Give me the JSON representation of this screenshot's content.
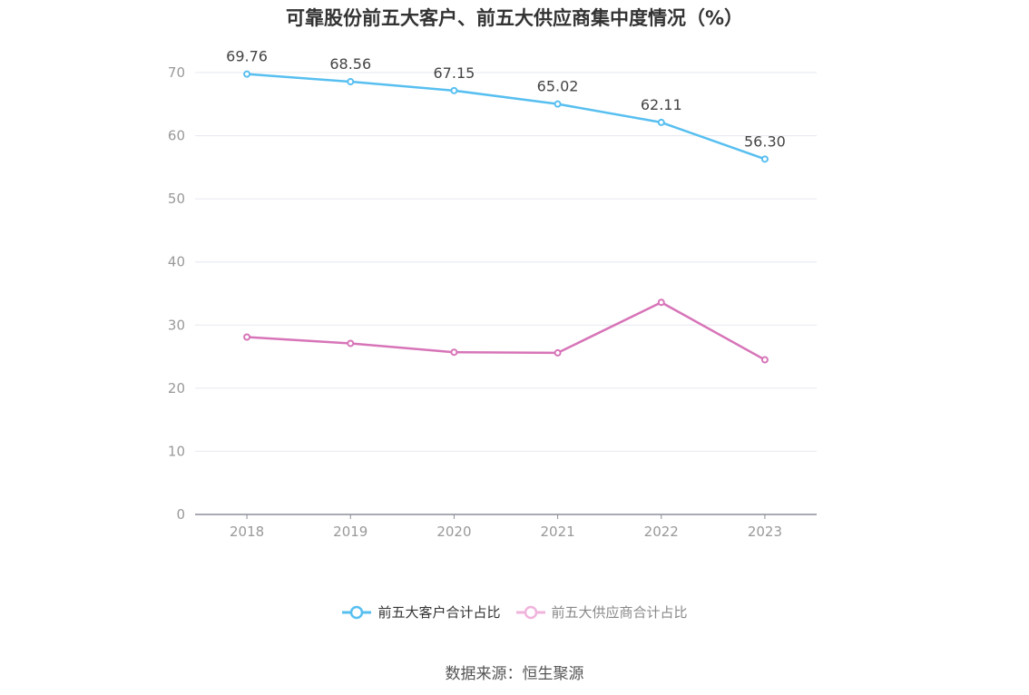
{
  "chart_data": {
    "type": "line",
    "title": "可靠股份前五大客户、前五大供应商集中度情况（%）",
    "categories": [
      "2018",
      "2019",
      "2020",
      "2021",
      "2022",
      "2023"
    ],
    "series": [
      {
        "name": "前五大客户合计占比",
        "values": [
          69.76,
          68.56,
          67.15,
          65.02,
          62.11,
          56.3
        ],
        "labels": [
          "69.76",
          "68.56",
          "67.15",
          "65.02",
          "62.11",
          "56.30"
        ],
        "color": "#57bff0",
        "show_labels": true
      },
      {
        "name": "前五大供应商合计占比",
        "values": [
          28.1,
          27.1,
          25.7,
          25.6,
          33.6,
          24.5
        ],
        "color": "#d774b8",
        "legend_color": "#f0b3dc",
        "show_labels": false
      }
    ],
    "ylim": [
      0,
      70
    ],
    "yticks": [
      0,
      10,
      20,
      30,
      40,
      50,
      60,
      70
    ],
    "grid": true,
    "legend_position": "bottom"
  },
  "source": "数据来源：恒生聚源"
}
